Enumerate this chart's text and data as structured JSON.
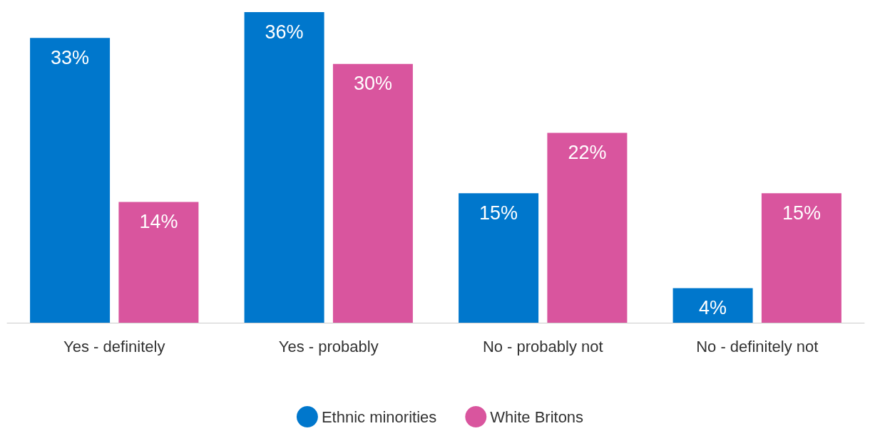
{
  "chart_data": {
    "type": "bar",
    "categories": [
      "Yes - definitely",
      "Yes - probably",
      "No - probably not",
      "No - definitely not"
    ],
    "series": [
      {
        "name": "Ethnic minorities",
        "color": "#0077cc",
        "values": [
          33,
          36,
          15,
          4
        ],
        "value_labels": [
          "33%",
          "36%",
          "15%",
          "4%"
        ]
      },
      {
        "name": "White Britons",
        "color": "#d9559e",
        "values": [
          14,
          30,
          22,
          15
        ],
        "value_labels": [
          "14%",
          "30%",
          "22%",
          "15%"
        ]
      }
    ],
    "ylim": [
      0,
      36
    ],
    "tick_labels": "x",
    "grid": false,
    "legend": "bottom"
  }
}
